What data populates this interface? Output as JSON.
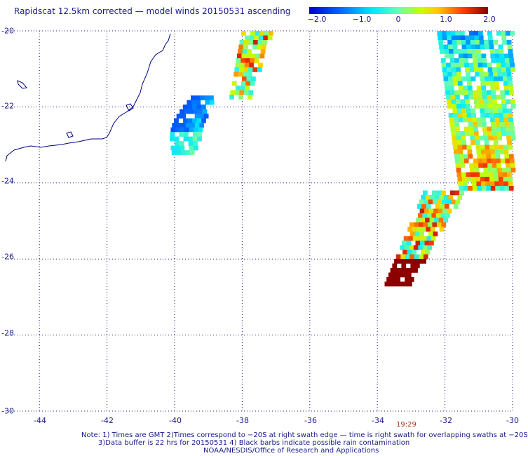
{
  "title": "Rapidscat 12.5km corrected — model winds 20150531 ascending",
  "colorbar": {
    "ticks": [
      "−2.0",
      "−1.0",
      "0",
      "1.0",
      "2.0"
    ],
    "colors": [
      "#0000c8",
      "#0064ff",
      "#00e6ff",
      "#c8ff00",
      "#ffc800",
      "#ff3c00",
      "#8c0000"
    ]
  },
  "map": {
    "lat_labels": [
      "-20",
      "-22",
      "-24",
      "-26",
      "-28",
      "-30"
    ],
    "lon_labels": [
      "-44",
      "-42",
      "-40",
      "-38",
      "-36",
      "-34",
      "-32",
      "-30"
    ],
    "time_label": "19:29",
    "coast_color": "#000080",
    "grid": true
  },
  "notes": {
    "line1": "Note: 1) Times are GMT 2)Times correspond to −20S at right swath edge — time is right swath for overlapping swaths at −20S",
    "line2": "3)Data buffer is 22 hrs for 20150531 4) Black barbs indicate possible rain contamination",
    "line3": "NOAA/NESDIS/Office of Research and Applications"
  },
  "chart_data": {
    "type": "heatmap",
    "title": "Rapidscat 12.5km corrected — model winds 20150531 ascending",
    "xlim": [
      -45,
      -30
    ],
    "ylim": [
      -30,
      -20
    ],
    "value_range": [
      -2.0,
      2.0
    ],
    "swaths": [
      {
        "lon": [
          -38.2,
          -37.2
        ],
        "lat": [
          -21.7,
          -20.0
        ],
        "mean_value": 0.6
      },
      {
        "lon": [
          -39.9,
          -38.9
        ],
        "lat": [
          -23.2,
          -21.7
        ],
        "mean_value": -1.0
      },
      {
        "lon": [
          -34.1,
          -30.0
        ],
        "lat": [
          -26.6,
          -20.0
        ],
        "mean_value": 0.6
      }
    ]
  }
}
